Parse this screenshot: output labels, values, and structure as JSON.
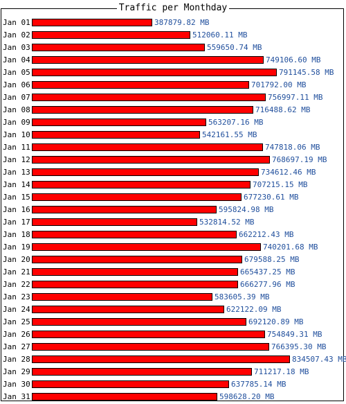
{
  "chart_data": {
    "type": "bar",
    "orientation": "horizontal",
    "title": "Traffic per Monthday",
    "unit": "MB",
    "bar_color": "#ff0000",
    "value_label_color": "#1f4e9c",
    "categories": [
      "Jan 01",
      "Jan 02",
      "Jan 03",
      "Jan 04",
      "Jan 05",
      "Jan 06",
      "Jan 07",
      "Jan 08",
      "Jan 09",
      "Jan 10",
      "Jan 11",
      "Jan 12",
      "Jan 13",
      "Jan 14",
      "Jan 15",
      "Jan 16",
      "Jan 17",
      "Jan 18",
      "Jan 19",
      "Jan 20",
      "Jan 21",
      "Jan 22",
      "Jan 23",
      "Jan 24",
      "Jan 25",
      "Jan 26",
      "Jan 27",
      "Jan 28",
      "Jan 29",
      "Jan 30",
      "Jan 31"
    ],
    "values": [
      387879.82,
      512060.11,
      559650.74,
      749106.6,
      791145.58,
      701792.0,
      756997.11,
      716488.62,
      563207.16,
      542161.55,
      747818.06,
      768697.19,
      734612.46,
      707215.15,
      677230.61,
      595824.98,
      532814.52,
      662212.43,
      740201.68,
      679588.25,
      665437.25,
      666277.96,
      583605.39,
      622122.09,
      692120.89,
      754849.31,
      766395.3,
      834507.43,
      711217.18,
      637785.14,
      598628.2
    ],
    "value_labels": [
      "387879.82 MB",
      "512060.11 MB",
      "559650.74 MB",
      "749106.60 MB",
      "791145.58 MB",
      "701792.00 MB",
      "756997.11 MB",
      "716488.62 MB",
      "563207.16 MB",
      "542161.55 MB",
      "747818.06 MB",
      "768697.19 MB",
      "734612.46 MB",
      "707215.15 MB",
      "677230.61 MB",
      "595824.98 MB",
      "532814.52 MB",
      "662212.43 MB",
      "740201.68 MB",
      "679588.25 MB",
      "665437.25 MB",
      "666277.96 MB",
      "583605.39 MB",
      "622122.09 MB",
      "692120.89 MB",
      "754849.31 MB",
      "766395.30 MB",
      "834507.43 MB",
      "711217.18 MB",
      "637785.14 MB",
      "598628.20 MB"
    ]
  }
}
